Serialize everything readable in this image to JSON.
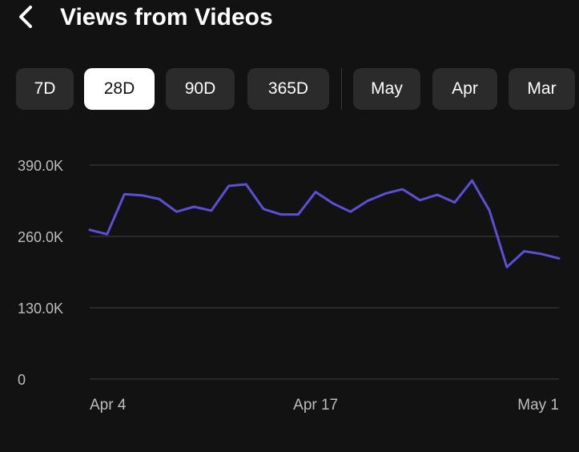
{
  "header": {
    "title": "Views from Videos",
    "back_icon": "chevron-left-icon"
  },
  "range_buttons": [
    {
      "label": "7D",
      "selected": false
    },
    {
      "label": "28D",
      "selected": true
    },
    {
      "label": "90D",
      "selected": false
    },
    {
      "label": "365D",
      "selected": false
    },
    {
      "label": "May",
      "selected": false
    },
    {
      "label": "Apr",
      "selected": false
    },
    {
      "label": "Mar",
      "selected": false
    }
  ],
  "colors": {
    "background": "#121212",
    "line": "#5b4fd6",
    "gridline": "#333333",
    "axis_text": "#bdbdbd",
    "button_bg": "#2b2b2b",
    "button_selected_bg": "#ffffff"
  },
  "chart_data": {
    "type": "line",
    "title": "",
    "xlabel": "",
    "ylabel": "",
    "ylim": [
      0,
      390000
    ],
    "y_ticks": [
      0,
      130000,
      260000,
      390000
    ],
    "y_tick_labels": [
      "0",
      "130.0K",
      "260.0K",
      "390.0K"
    ],
    "x_tick_labels": [
      "Apr 4",
      "Apr 17",
      "May 1"
    ],
    "x_tick_index": [
      1,
      14,
      28
    ],
    "grid": true,
    "legend": "none",
    "series": [
      {
        "values": [
          272000,
          264000,
          337000,
          335000,
          328000,
          305000,
          314000,
          307000,
          352000,
          355000,
          310000,
          300000,
          300000,
          341000,
          320000,
          305000,
          325000,
          338000,
          346000,
          326000,
          336000,
          322000,
          362000,
          307000,
          204000,
          233000,
          228000,
          220000
        ]
      }
    ]
  }
}
